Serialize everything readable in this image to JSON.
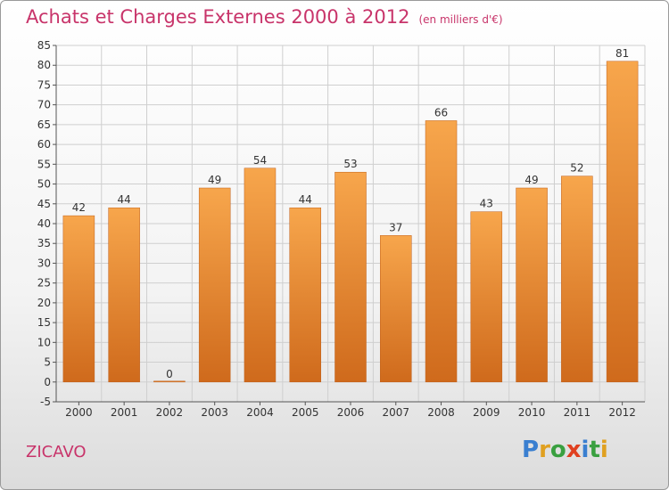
{
  "title": "Achats et Charges Externes 2000 à 2012",
  "title_unit": "(en milliers d'€)",
  "commune": "ZICAVO",
  "logo": {
    "text": "Proxiti",
    "letters": [
      "P",
      "r",
      "o",
      "x",
      "i",
      "t",
      "i"
    ],
    "colors": [
      "#3a7fd0",
      "#e0a020",
      "#3aa040",
      "#e04020",
      "#3a7fd0",
      "#3aa040",
      "#e0a020"
    ]
  },
  "colors": {
    "title": "#c8346a",
    "bar_top": "#f7a64c",
    "bar_bottom": "#cf6a1c",
    "axis_text": "#333333"
  },
  "chart_data": {
    "type": "bar",
    "title": "Achats et Charges Externes 2000 à 2012",
    "categories": [
      "2000",
      "2001",
      "2002",
      "2003",
      "2004",
      "2005",
      "2006",
      "2007",
      "2008",
      "2009",
      "2010",
      "2011",
      "2012"
    ],
    "values": [
      42,
      44,
      0,
      49,
      54,
      44,
      53,
      37,
      66,
      43,
      49,
      52,
      81
    ],
    "data_labels": [
      "42",
      "44",
      "0",
      "49",
      "54",
      "44",
      "53",
      "37",
      "66",
      "43",
      "49",
      "52",
      "81"
    ],
    "ylim": [
      -5,
      85
    ],
    "yticks": [
      -5,
      0,
      5,
      10,
      15,
      20,
      25,
      30,
      35,
      40,
      45,
      50,
      55,
      60,
      65,
      70,
      75,
      80,
      85
    ],
    "ytick_labels": [
      "-5",
      "0",
      "5",
      "10",
      "15",
      "20",
      "25",
      "30",
      "35",
      "40",
      "45",
      "50",
      "55",
      "60",
      "65",
      "70",
      "75",
      "80",
      "85"
    ],
    "grid": true,
    "legend": "none"
  }
}
